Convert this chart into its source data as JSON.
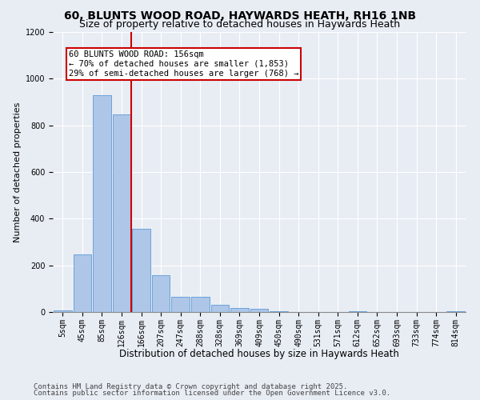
{
  "title": "60, BLUNTS WOOD ROAD, HAYWARDS HEATH, RH16 1NB",
  "subtitle": "Size of property relative to detached houses in Haywards Heath",
  "xlabel": "Distribution of detached houses by size in Haywards Heath",
  "ylabel": "Number of detached properties",
  "categories": [
    "5sqm",
    "45sqm",
    "85sqm",
    "126sqm",
    "166sqm",
    "207sqm",
    "247sqm",
    "288sqm",
    "328sqm",
    "369sqm",
    "409sqm",
    "450sqm",
    "490sqm",
    "531sqm",
    "571sqm",
    "612sqm",
    "652sqm",
    "693sqm",
    "733sqm",
    "774sqm",
    "814sqm"
  ],
  "values": [
    8,
    248,
    928,
    848,
    358,
    158,
    65,
    65,
    30,
    18,
    13,
    5,
    0,
    0,
    0,
    5,
    0,
    0,
    0,
    0,
    5
  ],
  "bar_color": "#aec6e8",
  "bar_edge_color": "#5b9bd5",
  "background_color": "#e8edf4",
  "grid_color": "#ffffff",
  "vline_x": 3.5,
  "vline_color": "#cc0000",
  "annotation_text": "60 BLUNTS WOOD ROAD: 156sqm\n← 70% of detached houses are smaller (1,853)\n29% of semi-detached houses are larger (768) →",
  "annotation_box_color": "#ffffff",
  "annotation_box_edge": "#cc0000",
  "footnote1": "Contains HM Land Registry data © Crown copyright and database right 2025.",
  "footnote2": "Contains public sector information licensed under the Open Government Licence v3.0.",
  "ylim": [
    0,
    1200
  ],
  "title_fontsize": 10,
  "subtitle_fontsize": 9,
  "xlabel_fontsize": 8.5,
  "ylabel_fontsize": 8,
  "tick_fontsize": 7,
  "annotation_fontsize": 7.5,
  "footnote_fontsize": 6.5
}
